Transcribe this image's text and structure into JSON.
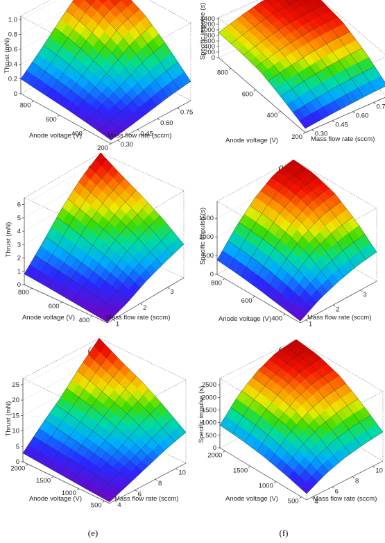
{
  "captions": [
    "(a)",
    "(b)",
    "(c)",
    "(d)",
    "(e)",
    "(f)"
  ],
  "chart_data": [
    {
      "type": "surface",
      "zlabel": "Thrust (mN)",
      "xlabel": "Anode voltage (V)",
      "ylabel": "Mass flow rate (sccm)",
      "x_ticks": [
        "800",
        "600",
        "400",
        "200"
      ],
      "y_ticks": [
        "0.30",
        "0.45",
        "0.60",
        "0.75"
      ],
      "z_ticks": [
        "0",
        "0.2",
        "0.4",
        "0.6",
        "0.8",
        "1.0"
      ],
      "xlim": [
        200,
        900
      ],
      "ylim": [
        0.25,
        0.85
      ],
      "zlim": [
        0,
        1.05
      ],
      "surface": {
        "x": [
          200,
          380,
          560,
          740,
          900
        ],
        "y": [
          0.25,
          0.4,
          0.55,
          0.7,
          0.85
        ],
        "z": [
          [
            0.05,
            0.1,
            0.14,
            0.17,
            0.2
          ],
          [
            0.1,
            0.22,
            0.32,
            0.4,
            0.45
          ],
          [
            0.16,
            0.35,
            0.52,
            0.65,
            0.72
          ],
          [
            0.22,
            0.48,
            0.72,
            0.88,
            0.97
          ],
          [
            0.26,
            0.56,
            0.82,
            0.98,
            1.05
          ]
        ]
      }
    },
    {
      "type": "surface",
      "zlabel": "Specific impulse (s)",
      "xlabel": "Anode voltage (V)",
      "ylabel": "Mass flow rate (sccm)",
      "x_ticks": [
        "800",
        "600",
        "400",
        "200"
      ],
      "y_ticks": [
        "0.30",
        "0.45",
        "0.60",
        "0.75"
      ],
      "z_ticks": [
        "0",
        "200",
        "400",
        "600",
        "800",
        "1000",
        "1200",
        "1400"
      ],
      "xlim": [
        200,
        900
      ],
      "ylim": [
        0.25,
        0.85
      ],
      "zlim": [
        0,
        1450
      ],
      "surface": {
        "x": [
          200,
          380,
          560,
          740,
          900
        ],
        "y": [
          0.25,
          0.4,
          0.55,
          0.7,
          0.85
        ],
        "z": [
          [
            150,
            500,
            800,
            880,
            900
          ],
          [
            230,
            650,
            1000,
            1100,
            1130
          ],
          [
            300,
            780,
            1150,
            1280,
            1320
          ],
          [
            360,
            880,
            1250,
            1380,
            1420
          ],
          [
            400,
            930,
            1300,
            1420,
            1450
          ]
        ]
      }
    },
    {
      "type": "surface",
      "zlabel": "Thrust (mN)",
      "xlabel": "Anode voltage (V)",
      "ylabel": "Mass flow rate (sccm)",
      "x_ticks": [
        "800",
        "600",
        "400"
      ],
      "y_ticks": [
        "1",
        "2",
        "3"
      ],
      "z_ticks": [
        "0",
        "1",
        "2",
        "3",
        "4",
        "5",
        "6"
      ],
      "xlim": [
        300,
        850
      ],
      "ylim": [
        0.8,
        3.6
      ],
      "zlim": [
        0,
        6.5
      ],
      "surface": {
        "x": [
          300,
          440,
          580,
          720,
          850
        ],
        "y": [
          0.8,
          1.5,
          2.2,
          2.9,
          3.6
        ],
        "z": [
          [
            0.05,
            0.25,
            0.45,
            0.65,
            0.8
          ],
          [
            0.6,
            1.1,
            1.6,
            2.0,
            2.4
          ],
          [
            1.4,
            2.3,
            3.0,
            3.6,
            4.1
          ],
          [
            2.0,
            3.1,
            4.0,
            4.8,
            5.5
          ],
          [
            2.5,
            3.7,
            4.7,
            5.6,
            6.5
          ]
        ]
      }
    },
    {
      "type": "surface",
      "zlabel": "Specific impulse (s)",
      "xlabel": "Anode voltage (V)",
      "ylabel": "Mass flow rate (sccm)",
      "x_ticks": [
        "800",
        "600",
        "400"
      ],
      "y_ticks": [
        "1",
        "2",
        "3"
      ],
      "z_ticks": [
        "0",
        "500",
        "1000",
        "1500"
      ],
      "xlim": [
        300,
        850
      ],
      "ylim": [
        0.8,
        3.6
      ],
      "zlim": [
        0,
        1950
      ],
      "surface": {
        "x": [
          300,
          440,
          580,
          720,
          850
        ],
        "y": [
          0.8,
          1.5,
          2.2,
          2.9,
          3.6
        ],
        "z": [
          [
            50,
            150,
            250,
            330,
            380
          ],
          [
            350,
            650,
            850,
            950,
            1000
          ],
          [
            550,
            1000,
            1300,
            1450,
            1500
          ],
          [
            700,
            1200,
            1600,
            1800,
            1850
          ],
          [
            780,
            1300,
            1700,
            1900,
            1950
          ]
        ]
      }
    },
    {
      "type": "surface",
      "zlabel": "Thrust (mN)",
      "xlabel": "Anode voltage (V)",
      "ylabel": "Mass flow rate (sccm)",
      "x_ticks": [
        "2000",
        "1500",
        "1000",
        "500"
      ],
      "y_ticks": [
        "4",
        "6",
        "8",
        "10"
      ],
      "z_ticks": [
        "0",
        "5",
        "10",
        "15",
        "20",
        "25"
      ],
      "xlim": [
        400,
        2100
      ],
      "ylim": [
        3.5,
        11
      ],
      "zlim": [
        0,
        27
      ],
      "surface": {
        "x": [
          400,
          825,
          1250,
          1675,
          2100
        ],
        "y": [
          3.5,
          5.4,
          7.25,
          9.1,
          11
        ],
        "z": [
          [
            0.5,
            1.0,
            1.6,
            2.2,
            2.8
          ],
          [
            3.0,
            5.0,
            6.5,
            7.8,
            9.0
          ],
          [
            5.5,
            8.5,
            11.0,
            13.0,
            14.5
          ],
          [
            8.0,
            12.0,
            15.5,
            18.5,
            21.0
          ],
          [
            10.0,
            15.0,
            19.5,
            23.0,
            27.0
          ]
        ]
      }
    },
    {
      "type": "surface",
      "zlabel": "Specific impulse (s)",
      "xlabel": "Anode voltage (V)",
      "ylabel": "Mass flow rate (sccm)",
      "x_ticks": [
        "2000",
        "1500",
        "1000",
        "500"
      ],
      "y_ticks": [
        "4",
        "6",
        "8",
        "10"
      ],
      "z_ticks": [
        "0",
        "500",
        "1000",
        "1500",
        "2000",
        "2500"
      ],
      "xlim": [
        400,
        2100
      ],
      "ylim": [
        3.5,
        11
      ],
      "zlim": [
        0,
        2750
      ],
      "surface": {
        "x": [
          400,
          825,
          1250,
          1675,
          2100
        ],
        "y": [
          3.5,
          5.4,
          7.25,
          9.1,
          11
        ],
        "z": [
          [
            250,
            500,
            700,
            830,
            900
          ],
          [
            650,
            1100,
            1450,
            1650,
            1750
          ],
          [
            900,
            1500,
            1950,
            2200,
            2300
          ],
          [
            1050,
            1700,
            2250,
            2550,
            2650
          ],
          [
            1150,
            1800,
            2350,
            2650,
            2750
          ]
        ]
      }
    }
  ]
}
